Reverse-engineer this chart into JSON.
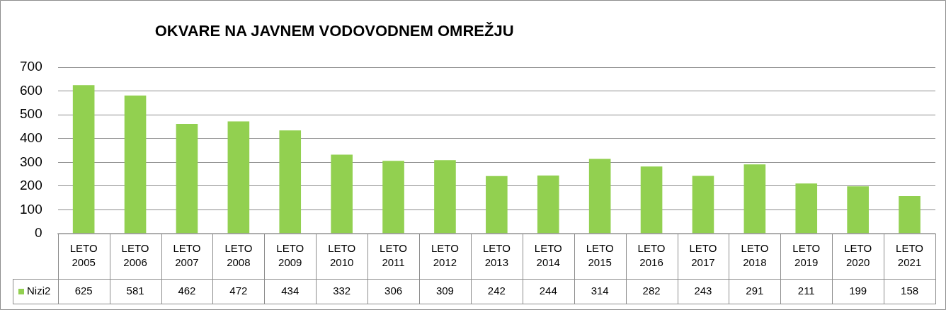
{
  "chart_data": {
    "type": "bar",
    "title": "OKVARE NA JAVNEM VODOVODNEM OMREŽJU",
    "categories": [
      "LETO 2005",
      "LETO 2006",
      "LETO 2007",
      "LETO 2008",
      "LETO 2009",
      "LETO 2010",
      "LETO 2011",
      "LETO 2012",
      "LETO 2013",
      "LETO 2014",
      "LETO 2015",
      "LETO 2016",
      "LETO 2017",
      "LETO 2018",
      "LETO 2019",
      "LETO 2020",
      "LETO 2021"
    ],
    "series": [
      {
        "name": "Nizi2",
        "color": "#92d050",
        "values": [
          625,
          581,
          462,
          472,
          434,
          332,
          306,
          309,
          242,
          244,
          314,
          282,
          243,
          291,
          211,
          199,
          158
        ]
      }
    ],
    "ylim": [
      0,
      700
    ],
    "yticks": [
      0,
      100,
      200,
      300,
      400,
      500,
      600,
      700
    ],
    "grid": "y",
    "legend": "bottom",
    "data_labels": true
  }
}
